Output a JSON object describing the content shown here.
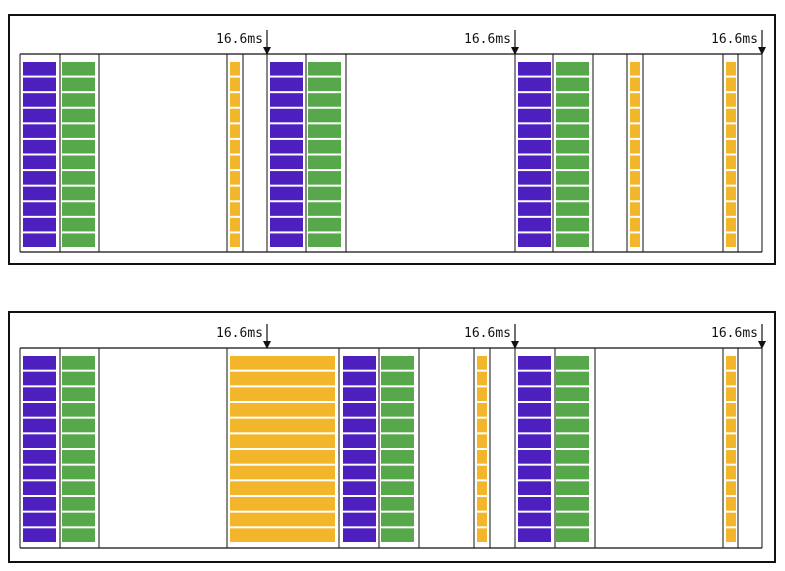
{
  "colors": {
    "purple": "#4d1fbf",
    "green": "#57a84b",
    "yellow": "#f3b62a",
    "line": "#111111"
  },
  "marker_label": "16.6ms",
  "timelines": [
    {
      "panel": 1,
      "markers": [
        "16.6ms",
        "16.6ms",
        "16.6ms"
      ],
      "blocks": [
        {
          "kind": "purple",
          "rows": 12
        },
        {
          "kind": "green",
          "rows": 12
        },
        {
          "kind": "yellow",
          "rows": 12
        },
        {
          "kind": "purple",
          "rows": 12
        },
        {
          "kind": "green",
          "rows": 12
        },
        {
          "kind": "purple",
          "rows": 12
        },
        {
          "kind": "green",
          "rows": 12
        },
        {
          "kind": "yellow",
          "rows": 12
        },
        {
          "kind": "yellow",
          "rows": 12
        }
      ]
    },
    {
      "panel": 2,
      "markers": [
        "16.6ms",
        "16.6ms",
        "16.6ms"
      ],
      "blocks": [
        {
          "kind": "purple",
          "rows": 12
        },
        {
          "kind": "green",
          "rows": 12
        },
        {
          "kind": "yellow",
          "rows": 12
        },
        {
          "kind": "purple",
          "rows": 12
        },
        {
          "kind": "green",
          "rows": 12
        },
        {
          "kind": "yellow",
          "rows": 12
        },
        {
          "kind": "purple",
          "rows": 12
        },
        {
          "kind": "green",
          "rows": 12
        },
        {
          "kind": "yellow",
          "rows": 12
        }
      ]
    }
  ]
}
